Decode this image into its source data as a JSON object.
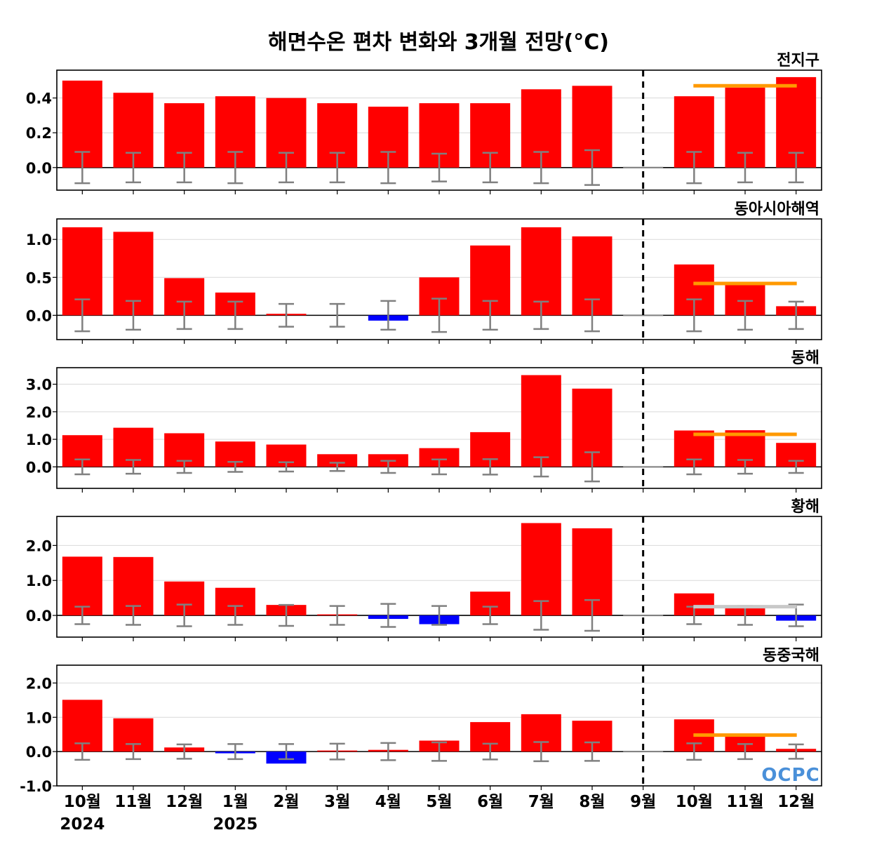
{
  "title": "해면수온 편차 변화와 3개월 전망(°C)",
  "logo": "OCPC",
  "colors": {
    "positive": "#ff0000",
    "negative": "#0000ff",
    "forecast_line": "#ff9900",
    "forecast_line_neutral": "#c8c8c8",
    "error_bar": "#808080",
    "grid": "#d9d9d9",
    "divider": "#000000"
  },
  "categories": [
    "10월",
    "11월",
    "12월",
    "1월",
    "2월",
    "3월",
    "4월",
    "5월",
    "6월",
    "7월",
    "8월",
    "9월",
    "10월",
    "11월",
    "12월"
  ],
  "year_labels": [
    {
      "index": 0,
      "label": "2024"
    },
    {
      "index": 3,
      "label": "2025"
    }
  ],
  "chart_data": [
    {
      "type": "bar",
      "title": "전지구",
      "values": [
        0.5,
        0.43,
        0.37,
        0.41,
        0.4,
        0.37,
        0.35,
        0.37,
        0.37,
        0.45,
        0.47,
        0.0,
        0.41,
        0.46,
        0.52
      ],
      "error": [
        0.09,
        0.085,
        0.085,
        0.09,
        0.085,
        0.085,
        0.09,
        0.08,
        0.085,
        0.09,
        0.1,
        null,
        0.09,
        0.085,
        0.085
      ],
      "forecast_value": 0.47,
      "forecast_color": "orange",
      "yticks": [
        0.0,
        0.2,
        0.4
      ],
      "tick_format": 1,
      "ylim": [
        -0.13,
        0.56
      ],
      "divider_after_index": 11
    },
    {
      "type": "bar",
      "title": "동아시아해역",
      "values": [
        1.16,
        1.1,
        0.49,
        0.3,
        0.02,
        0.0,
        -0.07,
        0.5,
        0.92,
        1.16,
        1.04,
        0.0,
        0.67,
        0.44,
        0.12
      ],
      "error": [
        0.21,
        0.19,
        0.18,
        0.18,
        0.15,
        0.15,
        0.19,
        0.22,
        0.19,
        0.18,
        0.21,
        null,
        0.21,
        0.19,
        0.18
      ],
      "forecast_value": 0.42,
      "forecast_color": "orange",
      "yticks": [
        0.0,
        0.5,
        1.0
      ],
      "tick_format": 1,
      "ylim": [
        -0.32,
        1.27
      ],
      "divider_after_index": 11
    },
    {
      "type": "bar",
      "title": "동해",
      "values": [
        1.15,
        1.42,
        1.22,
        0.92,
        0.81,
        0.46,
        0.46,
        0.68,
        1.26,
        3.33,
        2.84,
        0.0,
        1.32,
        1.33,
        0.87
      ],
      "error": [
        0.27,
        0.25,
        0.22,
        0.18,
        0.17,
        0.15,
        0.22,
        0.27,
        0.28,
        0.35,
        0.53,
        null,
        0.27,
        0.25,
        0.22
      ],
      "forecast_value": 1.18,
      "forecast_color": "orange",
      "yticks": [
        0.0,
        1.0,
        2.0,
        3.0
      ],
      "tick_format": 1,
      "ylim": [
        -0.78,
        3.6
      ],
      "divider_after_index": 11
    },
    {
      "type": "bar",
      "title": "황해",
      "values": [
        1.68,
        1.67,
        0.97,
        0.79,
        0.3,
        0.03,
        -0.1,
        -0.25,
        0.68,
        2.64,
        2.49,
        0.0,
        0.63,
        0.22,
        -0.15
      ],
      "error": [
        0.25,
        0.27,
        0.31,
        0.27,
        0.3,
        0.27,
        0.33,
        0.27,
        0.25,
        0.41,
        0.44,
        null,
        0.25,
        0.27,
        0.31
      ],
      "forecast_value": 0.25,
      "forecast_color": "gray",
      "yticks": [
        0.0,
        1.0,
        2.0
      ],
      "tick_format": 1,
      "ylim": [
        -0.62,
        2.83
      ],
      "divider_after_index": 11
    },
    {
      "type": "bar",
      "title": "동중국해",
      "values": [
        1.51,
        0.97,
        0.12,
        -0.05,
        -0.35,
        0.03,
        0.05,
        0.32,
        0.86,
        1.09,
        0.9,
        0.0,
        0.94,
        0.45,
        0.08
      ],
      "error": [
        0.24,
        0.22,
        0.21,
        0.22,
        0.22,
        0.23,
        0.25,
        0.27,
        0.23,
        0.28,
        0.27,
        null,
        0.24,
        0.22,
        0.21
      ],
      "forecast_value": 0.48,
      "forecast_color": "orange",
      "yticks": [
        -1.0,
        0.0,
        1.0,
        2.0
      ],
      "tick_format": 1,
      "ylim": [
        -1.0,
        2.52
      ],
      "divider_after_index": 11
    }
  ]
}
